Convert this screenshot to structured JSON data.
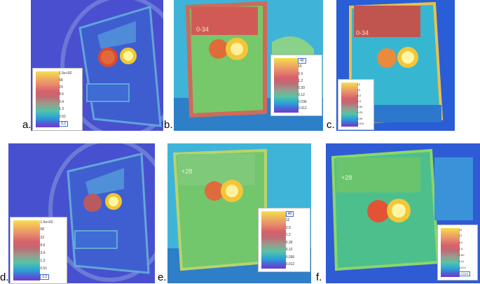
{
  "panels": [
    {
      "id": "a",
      "label": "a.",
      "ticks": [
        "1.5e+02",
        "58",
        "23",
        "8.6",
        "3.4",
        "1.3",
        "0.52",
        "0.2"
      ]
    },
    {
      "id": "b",
      "label": "b.",
      "ticks": [
        "40",
        "15",
        "3.9",
        "1.2",
        "0.39",
        "0.12",
        "0.036",
        "0.012"
      ]
    },
    {
      "id": "c",
      "label": "c.",
      "ticks": [
        "10",
        "13",
        "4.0",
        "1.6",
        "0.50",
        "0.23",
        "0.09",
        "0.019"
      ]
    },
    {
      "id": "d",
      "label": "d.",
      "ticks": [
        "1.5e+02",
        "58",
        "23",
        "8.6",
        "3.4",
        "1.3",
        "0.51",
        "0.2"
      ]
    },
    {
      "id": "e",
      "label": "e.",
      "ticks": [
        "40",
        "12",
        "3.9",
        "1.2",
        "0.39",
        "0.12",
        "0.036",
        "0.012"
      ]
    },
    {
      "id": "f",
      "label": "f.",
      "ticks": [
        "10",
        "13",
        "4.0",
        "1.6",
        "0.50",
        "0.21",
        "0.074",
        "0.019"
      ]
    }
  ],
  "stickers": {
    "c": "0-34",
    "b": "0-34",
    "e": "+28",
    "f": "+28"
  }
}
